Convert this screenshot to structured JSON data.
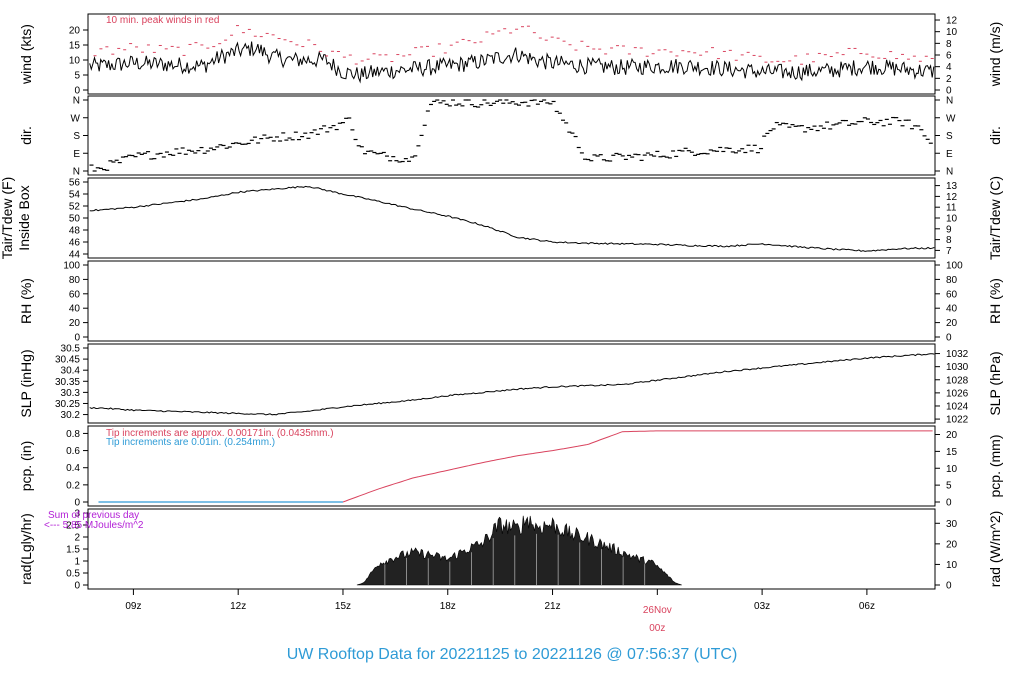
{
  "colors": {
    "red": "#d9435e",
    "blue": "#2e9bd6",
    "purple": "#b21fd6",
    "black": "#000000"
  },
  "footer_title": "UW Rooftop Data for 20221125  to  20221126 @ 07:56:37  (UTC)",
  "chart_data": {
    "type": "line",
    "x_hours_range": [
      7.7,
      31.95
    ],
    "x_ticks": [
      {
        "hour": 9,
        "label": "09z"
      },
      {
        "hour": 12,
        "label": "12z"
      },
      {
        "hour": 15,
        "label": "15z"
      },
      {
        "hour": 18,
        "label": "18z"
      },
      {
        "hour": 21,
        "label": "21z"
      },
      {
        "hour": 27,
        "label": "03z"
      },
      {
        "hour": 30,
        "label": "06z"
      }
    ],
    "day_marker": {
      "hour": 24,
      "label": "26Nov",
      "sublabel": "00z"
    },
    "panels": [
      {
        "id": "wind",
        "ylabel_left": "wind (kts)",
        "ylabel_right": "wind (m/s)",
        "ylim": [
          0,
          24
        ],
        "left_ticks": [
          0,
          5,
          10,
          15,
          20
        ],
        "right_ticks": [
          0,
          2,
          4,
          6,
          8,
          10,
          12
        ],
        "right_factor": 1.944,
        "note": "10 min. peak winds in red",
        "series": [
          {
            "name": "wind speed",
            "x": [
              8,
              9,
              10,
              11,
              11.5,
              12,
              12.5,
              13,
              13.5,
              14,
              14.5,
              15,
              15.5,
              16,
              17,
              18,
              19,
              19.5,
              20,
              20.5,
              21,
              22,
              23,
              24,
              25,
              26,
              27,
              28,
              29,
              30,
              31,
              32
            ],
            "y": [
              8,
              9,
              8.5,
              8,
              11,
              13,
              14,
              11,
              10,
              10,
              10,
              6,
              5,
              6,
              7,
              8,
              9.5,
              11,
              12,
              10,
              9,
              8,
              7.5,
              8,
              8,
              7,
              6,
              6,
              6.5,
              8,
              7,
              6
            ]
          },
          {
            "name": "10 min. peak winds",
            "x": [
              8,
              9,
              10,
              11,
              12,
              13,
              14,
              15,
              16,
              17,
              18,
              19,
              20,
              21,
              22,
              23,
              24,
              25,
              26,
              27,
              28,
              29,
              30,
              31,
              32
            ],
            "y": [
              13,
              14,
              13,
              14,
              20,
              18,
              15,
              11,
              10,
              12,
              14,
              17,
              21,
              16,
              14,
              13,
              13,
              13,
              12,
              10,
              10,
              11,
              13,
              11,
              10
            ]
          }
        ]
      },
      {
        "id": "dir",
        "ylabel_left": "dir.",
        "ylabel_right": "dir.",
        "ylim": [
          0,
          360
        ],
        "left_ticks_labels": [
          "N",
          "E",
          "S",
          "W",
          "N"
        ],
        "series": [
          {
            "name": "wind direction (deg)",
            "x": [
              8,
              9,
              10,
              11,
              12,
              13,
              14,
              14.8,
              15.2,
              15.5,
              16,
              17,
              17.5,
              18,
              19,
              20,
              21,
              22,
              23,
              24,
              25,
              26,
              26.9,
              27.3,
              28,
              29,
              30,
              31,
              31.5,
              32
            ],
            "y": [
              10,
              70,
              95,
              110,
              140,
              170,
              185,
              230,
              260,
              110,
              80,
              60,
              340,
              350,
              345,
              350,
              350,
              60,
              70,
              80,
              100,
              110,
              115,
              225,
              215,
              230,
              250,
              250,
              220,
              100
            ]
          }
        ]
      },
      {
        "id": "temp",
        "ylabel_left": "Tair/Tdew (F)\nInside Box",
        "ylabel_right": "Tair/Tdew (C)",
        "ylim": [
          44,
          56
        ],
        "left_ticks": [
          44,
          46,
          48,
          50,
          52,
          54,
          56
        ],
        "right_ticks": [
          7,
          8,
          9,
          10,
          11,
          12,
          13
        ],
        "series": [
          {
            "name": "Tair",
            "x": [
              8,
              9,
              10,
              11,
              12,
              13,
              14,
              15,
              16,
              17,
              18,
              19,
              20,
              21,
              22,
              23,
              24,
              25,
              26,
              27,
              28,
              29,
              30,
              31,
              32
            ],
            "y": [
              51.3,
              51.8,
              52.5,
              53.2,
              54.3,
              54.8,
              55.3,
              54,
              52.8,
              51.5,
              50.3,
              48.8,
              46.8,
              46,
              45.8,
              45.7,
              45.6,
              45.4,
              45.3,
              45.7,
              45.2,
              44.8,
              44.5,
              44.9,
              45
            ]
          }
        ]
      },
      {
        "id": "rh",
        "ylabel_left": "RH (%)",
        "ylabel_right": "RH (%)",
        "ylim": [
          0,
          100
        ],
        "left_ticks": [
          0,
          20,
          40,
          60,
          80,
          100
        ],
        "right_ticks": [
          0,
          20,
          40,
          60,
          80,
          100
        ]
      },
      {
        "id": "slp",
        "ylabel_left": "SLP (inHg)",
        "ylabel_right": "SLP (hPa)",
        "ylim": [
          30.18,
          30.5
        ],
        "left_ticks": [
          30.2,
          30.25,
          30.3,
          30.35,
          30.4,
          30.45,
          30.5
        ],
        "right_ticks": [
          1022,
          1024,
          1026,
          1028,
          1030,
          1032
        ],
        "series": [
          {
            "name": "SLP",
            "x": [
              8,
              9,
              10,
              11,
              12,
              13,
              14,
              15,
              16,
              17,
              18,
              19,
              20,
              21,
              22,
              23,
              24,
              25,
              26,
              27,
              28,
              29,
              30,
              31,
              32
            ],
            "y": [
              30.23,
              30.22,
              30.215,
              30.21,
              30.205,
              30.2,
              30.215,
              30.235,
              30.25,
              30.265,
              30.285,
              30.3,
              30.315,
              30.325,
              30.33,
              30.335,
              30.355,
              30.375,
              30.395,
              30.41,
              30.425,
              30.44,
              30.455,
              30.465,
              30.475
            ]
          }
        ]
      },
      {
        "id": "pcp",
        "ylabel_left": "pcp. (in)",
        "ylabel_right": "pcp. (mm)",
        "ylim": [
          0,
          0.84
        ],
        "left_ticks": [
          0,
          0.2,
          0.4,
          0.6,
          0.8
        ],
        "right_ticks": [
          0,
          5,
          10,
          15,
          20
        ],
        "note_red": "Tip increments are approx. 0.00171in. (0.0435mm.)",
        "note_blue": "Tip increments are 0.01in. (0.254mm.)",
        "series": [
          {
            "name": "pcp red",
            "x": [
              8,
              15,
              16,
              17,
              18,
              19,
              20,
              21,
              22,
              23,
              24,
              25,
              26,
              27,
              28,
              29,
              30,
              31,
              32
            ],
            "y": [
              0,
              0,
              0.15,
              0.28,
              0.37,
              0.46,
              0.54,
              0.6,
              0.67,
              0.82,
              0.83,
              0.83,
              0.83,
              0.83,
              0.83,
              0.83,
              0.83,
              0.83,
              0.83
            ]
          },
          {
            "name": "pcp blue",
            "x": [
              8,
              15
            ],
            "y": [
              0,
              0
            ]
          }
        ]
      },
      {
        "id": "rad",
        "ylabel_left": "rad(Lgly/hr)",
        "ylabel_right": "rad (W/m^2)",
        "ylim": [
          0,
          3
        ],
        "left_ticks": [
          0,
          0.5,
          1.0,
          1.5,
          2.0,
          2.5,
          3.0
        ],
        "right_ticks": [
          0,
          10,
          20,
          30
        ],
        "note_purple_1": "Sum of previous day",
        "note_purple_2": "<--- 5.85 MJoules/m^2",
        "series": [
          {
            "name": "radiation",
            "x": [
              15.4,
              15.6,
              16,
              16.5,
              17,
              17.5,
              18,
              18.5,
              19,
              19.3,
              19.5,
              20,
              20.3,
              20.5,
              21,
              21.5,
              22,
              22.5,
              23,
              23.5,
              23.8,
              24,
              24.3,
              24.5,
              24.7
            ],
            "y": [
              0,
              0.1,
              0.9,
              1.2,
              1.4,
              1.3,
              1.1,
              1.5,
              1.8,
              2.3,
              2.6,
              2.4,
              2.9,
              2.5,
              2.6,
              2.2,
              2.0,
              1.7,
              1.4,
              1.1,
              1.0,
              0.8,
              0.4,
              0.1,
              0
            ]
          }
        ]
      }
    ]
  }
}
